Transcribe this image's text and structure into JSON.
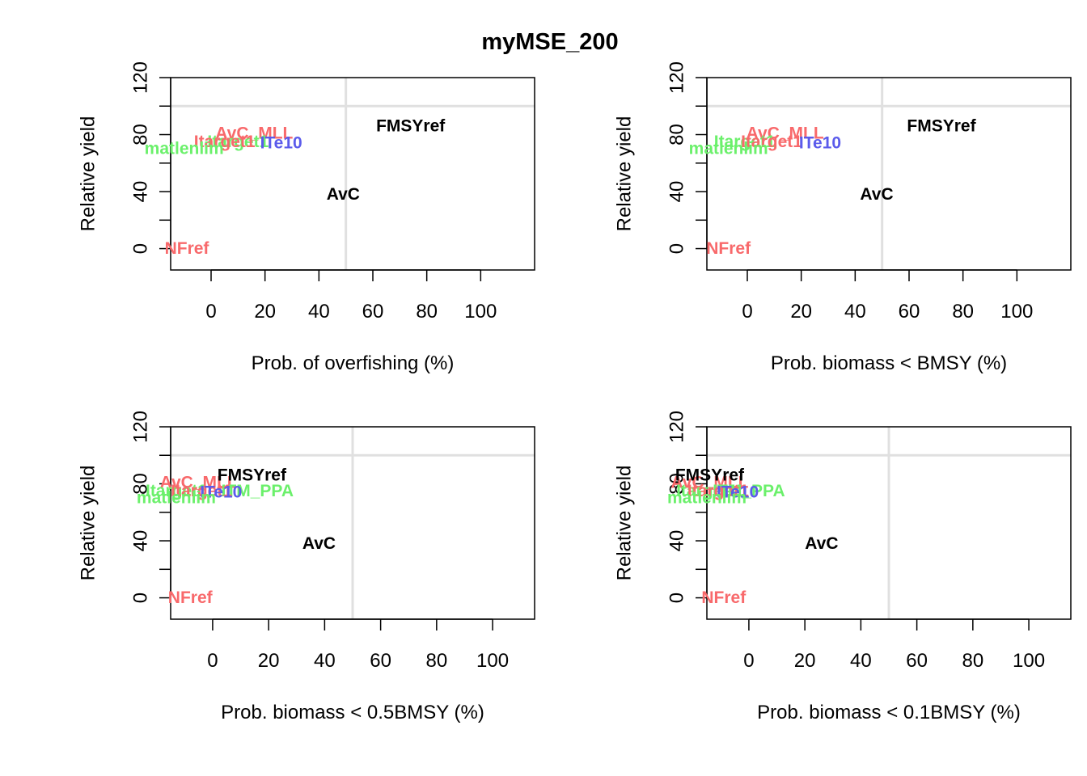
{
  "title": "myMSE_200",
  "colors": {
    "red": "#F8696B",
    "green": "#6BF06B",
    "blue": "#5B5BEB",
    "black": "#000000",
    "reference_line": "#E0E0E0"
  },
  "chart_data": [
    {
      "type": "scatter",
      "xlabel": "Prob. of overfishing (%)",
      "ylabel": "Relative yield",
      "xlim": [
        -15,
        120
      ],
      "ylim": [
        -15,
        120
      ],
      "xticks": [
        0,
        20,
        40,
        60,
        80,
        100
      ],
      "yticks": [
        0,
        40,
        80,
        120
      ],
      "vline": 50,
      "hline": 100,
      "grid": false,
      "points": [
        {
          "label": "AvC_MLL",
          "x": 16,
          "y": 81,
          "color": "red"
        },
        {
          "label": "Itarget1",
          "x": 10,
          "y": 75,
          "color": "green"
        },
        {
          "label": "Itarget1",
          "x": 5,
          "y": 75,
          "color": "red"
        },
        {
          "label": "ITe10",
          "x": 26,
          "y": 74,
          "color": "blue"
        },
        {
          "label": "matlenlim",
          "x": -10,
          "y": 70,
          "color": "green"
        },
        {
          "label": "FMSYref",
          "x": 74,
          "y": 86,
          "color": "black"
        },
        {
          "label": "AvC",
          "x": 49,
          "y": 38,
          "color": "black"
        },
        {
          "label": "NFref",
          "x": -9,
          "y": 0,
          "color": "red"
        }
      ]
    },
    {
      "type": "scatter",
      "xlabel": "Prob. biomass < BMSY (%)",
      "ylabel": "Relative yield",
      "xlim": [
        -15,
        120
      ],
      "ylim": [
        -15,
        120
      ],
      "xticks": [
        0,
        20,
        40,
        60,
        80,
        100
      ],
      "yticks": [
        0,
        40,
        80,
        120
      ],
      "vline": 50,
      "hline": 100,
      "grid": false,
      "points": [
        {
          "label": "AvC_MLL",
          "x": 14,
          "y": 81,
          "color": "red"
        },
        {
          "label": "Itarget1",
          "x": -1,
          "y": 75,
          "color": "green"
        },
        {
          "label": "Itarget1",
          "x": 9,
          "y": 75,
          "color": "red"
        },
        {
          "label": "ITe10",
          "x": 27,
          "y": 74,
          "color": "blue"
        },
        {
          "label": "matlenlim",
          "x": -7,
          "y": 70,
          "color": "green"
        },
        {
          "label": "FMSYref",
          "x": 72,
          "y": 86,
          "color": "black"
        },
        {
          "label": "AvC",
          "x": 48,
          "y": 38,
          "color": "black"
        },
        {
          "label": "NFref",
          "x": -7,
          "y": 0,
          "color": "red"
        }
      ]
    },
    {
      "type": "scatter",
      "xlabel": "Prob. biomass < 0.5BMSY (%)",
      "ylabel": "Relative yield",
      "xlim": [
        -15,
        115
      ],
      "ylim": [
        -15,
        120
      ],
      "xticks": [
        0,
        20,
        40,
        60,
        80,
        100
      ],
      "yticks": [
        0,
        40,
        80,
        120
      ],
      "vline": 50,
      "hline": 100,
      "grid": false,
      "points": [
        {
          "label": "AvC_MLL",
          "x": -5,
          "y": 81,
          "color": "red"
        },
        {
          "label": "ITM_PPA",
          "x": 16,
          "y": 75,
          "color": "green"
        },
        {
          "label": "Itarget1",
          "x": -13,
          "y": 75,
          "color": "green"
        },
        {
          "label": "Itarget1",
          "x": -4,
          "y": 75,
          "color": "red"
        },
        {
          "label": "ITe10",
          "x": 3,
          "y": 74,
          "color": "blue"
        },
        {
          "label": "matlenlim",
          "x": -13,
          "y": 70,
          "color": "green"
        },
        {
          "label": "FMSYref",
          "x": 14,
          "y": 86,
          "color": "black"
        },
        {
          "label": "AvC",
          "x": 38,
          "y": 38,
          "color": "black"
        },
        {
          "label": "NFref",
          "x": -8,
          "y": 0,
          "color": "red"
        }
      ]
    },
    {
      "type": "scatter",
      "xlabel": "Prob. biomass < 0.1BMSY (%)",
      "ylabel": "Relative yield",
      "xlim": [
        -15,
        115
      ],
      "ylim": [
        -15,
        120
      ],
      "xticks": [
        0,
        20,
        40,
        60,
        80,
        100
      ],
      "yticks": [
        0,
        40,
        80,
        120
      ],
      "vline": 50,
      "hline": 100,
      "grid": false,
      "points": [
        {
          "label": "AvC_MLL",
          "x": -14,
          "y": 81,
          "color": "red"
        },
        {
          "label": "ITM_PPA",
          "x": 0,
          "y": 75,
          "color": "green"
        },
        {
          "label": "Itarget1",
          "x": -15,
          "y": 75,
          "color": "green"
        },
        {
          "label": "Itarget1",
          "x": -11,
          "y": 75,
          "color": "red"
        },
        {
          "label": "ITe10",
          "x": -4,
          "y": 74,
          "color": "blue"
        },
        {
          "label": "matlenlim",
          "x": -15,
          "y": 70,
          "color": "green"
        },
        {
          "label": "FMSYref",
          "x": -14,
          "y": 86,
          "color": "black"
        },
        {
          "label": "AvC",
          "x": 26,
          "y": 38,
          "color": "black"
        },
        {
          "label": "NFref",
          "x": -9,
          "y": 0,
          "color": "red"
        }
      ]
    }
  ]
}
